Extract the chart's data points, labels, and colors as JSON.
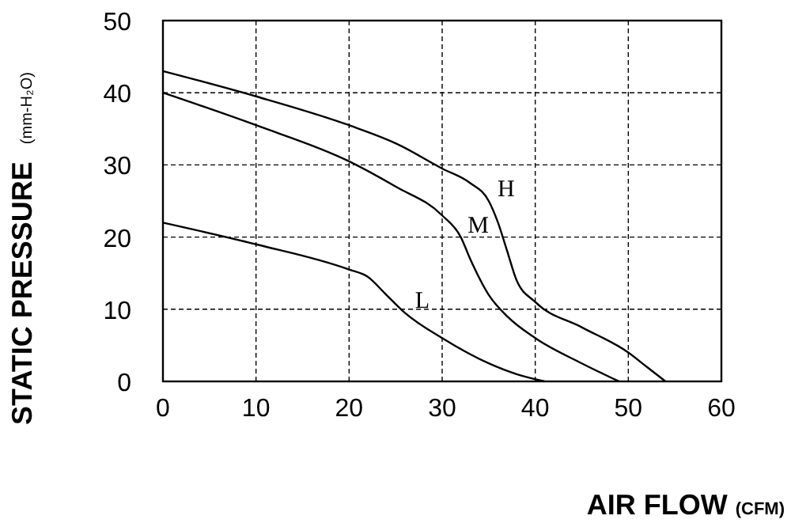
{
  "chart_data": {
    "type": "line",
    "xlabel": "AIR FLOW (CFM)",
    "ylabel": "STATIC PRESSURE (mm-H₂O)",
    "xlim": [
      0,
      60
    ],
    "xticks": [
      0,
      10,
      20,
      30,
      40,
      50,
      60
    ],
    "ylim": [
      0,
      50
    ],
    "yticks": [
      0,
      10,
      20,
      30,
      40,
      50
    ],
    "grid": true,
    "line_style": "solid",
    "series": [
      {
        "name": "H",
        "color": "#000000",
        "x": [
          0,
          10,
          20,
          25,
          30,
          33,
          35,
          36,
          37,
          38,
          40,
          45,
          50,
          52,
          54
        ],
        "values": [
          43,
          39.5,
          35.5,
          33,
          29.5,
          27.5,
          25,
          22,
          18,
          14,
          11,
          7.5,
          4,
          2,
          0
        ]
      },
      {
        "name": "M",
        "color": "#000000",
        "x": [
          0,
          10,
          20,
          25,
          30,
          32,
          33,
          35,
          37,
          40,
          45,
          49
        ],
        "values": [
          40,
          35.5,
          30.5,
          27,
          23,
          20,
          17,
          12,
          9,
          6,
          2.5,
          0
        ]
      },
      {
        "name": "L",
        "color": "#000000",
        "x": [
          0,
          10,
          20,
          22,
          24,
          26,
          30,
          35,
          38,
          41
        ],
        "values": [
          22,
          19,
          15.5,
          14.5,
          12,
          9.5,
          6,
          2.5,
          1,
          0
        ]
      }
    ]
  }
}
